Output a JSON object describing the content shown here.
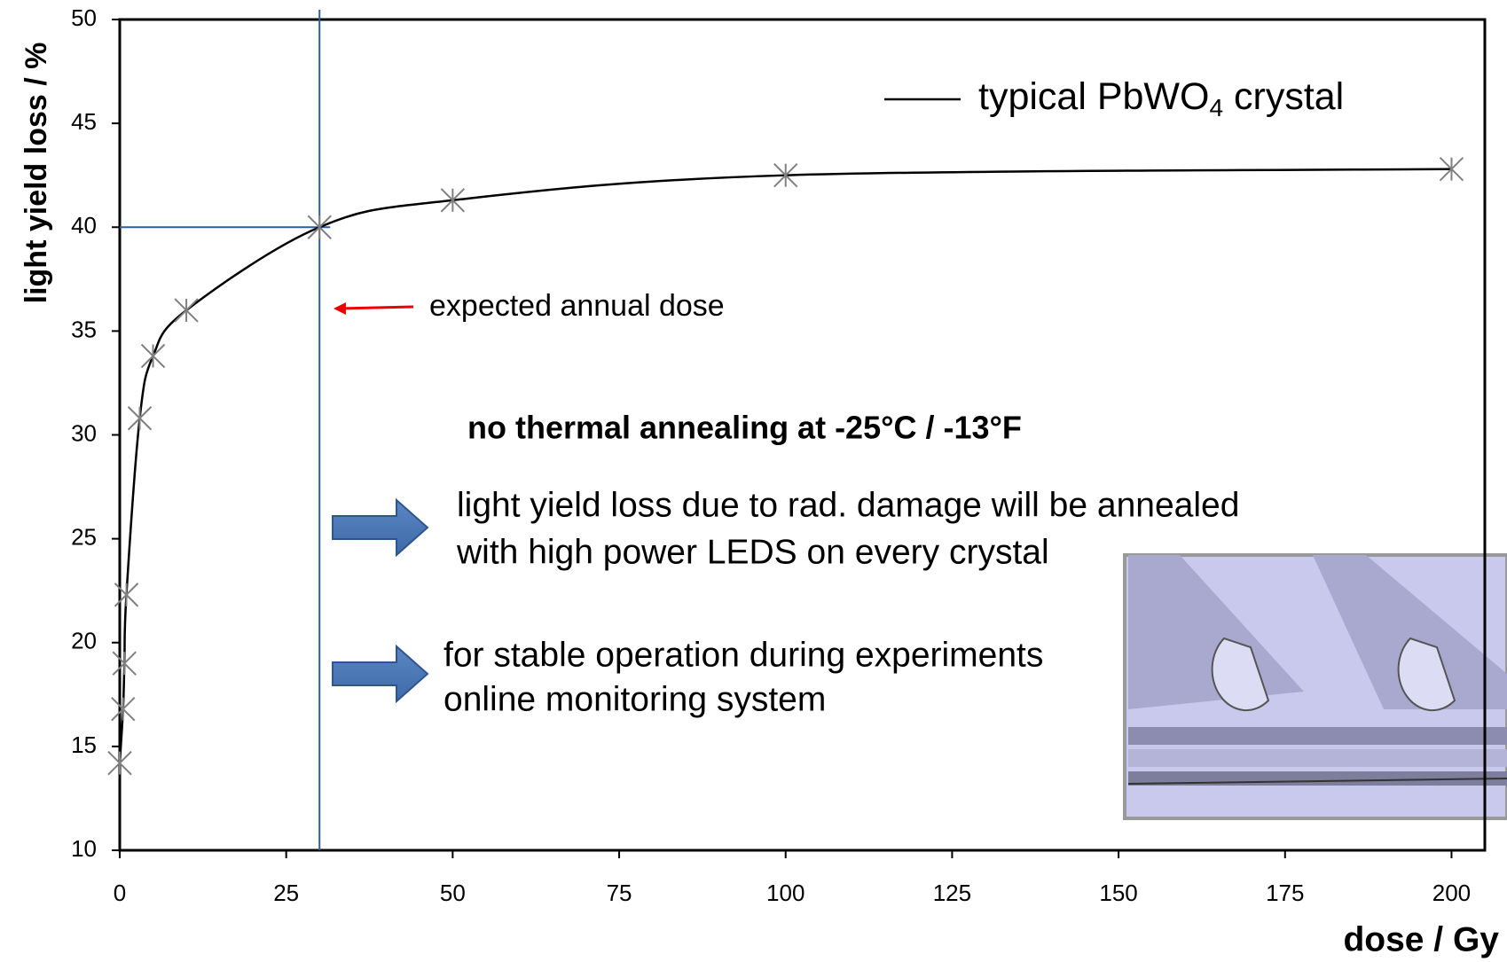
{
  "chart_data": {
    "type": "scatter",
    "xlabel": "dose / Gy",
    "ylabel": "light yield loss / %",
    "series": [
      {
        "name": "typical PbWO4 crystal",
        "color": "#000000",
        "marker_color": "#808080",
        "x": [
          0,
          0.5,
          0.7,
          1,
          3,
          5,
          10,
          30,
          50,
          100,
          200
        ],
        "values": [
          14.2,
          16.8,
          19,
          22.3,
          30.8,
          33.8,
          36,
          40,
          41.3,
          42.5,
          42.8
        ]
      }
    ],
    "xlim": [
      0,
      205
    ],
    "ylim": [
      10,
      50
    ],
    "xticks": [
      0,
      25,
      50,
      75,
      100,
      125,
      150,
      175,
      200
    ],
    "yticks": [
      10,
      15,
      20,
      25,
      30,
      35,
      40,
      45,
      50
    ],
    "vline": 30,
    "hline": 40,
    "reference_color": "#2e5e9e",
    "annotations": [
      "expected annual dose",
      "no thermal annealing at -25°C / -13°F",
      "light yield loss due to rad. damage will be annealed",
      "with high power LEDS on every crystal",
      "for stable operation during experiments",
      "online monitoring system"
    ]
  }
}
